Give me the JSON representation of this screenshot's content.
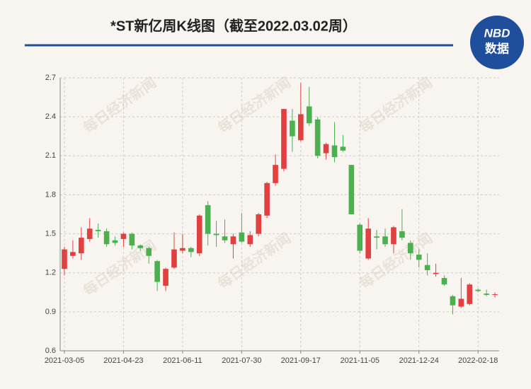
{
  "chart_data": {
    "type": "candlestick",
    "title": "*ST新亿周K线图（截至2022.03.02周）",
    "logo": {
      "top": "NBD",
      "bottom": "数据"
    },
    "watermark": "每日经济新闻",
    "categories": [
      "2021-03-05",
      null,
      null,
      null,
      null,
      null,
      null,
      "2021-04-23",
      null,
      null,
      null,
      null,
      null,
      null,
      "2021-06-11",
      null,
      null,
      null,
      null,
      null,
      null,
      "2021-07-30",
      null,
      null,
      null,
      null,
      null,
      null,
      "2021-09-17",
      null,
      null,
      null,
      null,
      null,
      null,
      "2021-11-05",
      null,
      null,
      null,
      null,
      null,
      null,
      "2021-12-24",
      null,
      null,
      null,
      null,
      null,
      null,
      "2022-02-18",
      null,
      null
    ],
    "open": [
      1.23,
      1.33,
      1.35,
      1.46,
      1.53,
      1.52,
      1.45,
      1.46,
      1.5,
      1.41,
      1.39,
      1.29,
      1.1,
      1.24,
      1.37,
      1.39,
      1.35,
      1.72,
      1.5,
      1.48,
      1.42,
      1.51,
      1.42,
      1.5,
      1.64,
      1.89,
      2.0,
      2.37,
      2.22,
      2.48,
      2.38,
      2.12,
      2.18,
      2.17,
      2.03,
      1.57,
      1.31,
      1.48,
      1.48,
      1.42,
      1.52,
      1.43,
      1.34,
      1.26,
      1.19,
      1.16,
      1.02,
      0.94,
      0.96,
      1.07,
      1.04,
      1.03
    ],
    "high": [
      1.4,
      1.45,
      1.55,
      1.62,
      1.58,
      1.54,
      1.48,
      1.51,
      1.51,
      1.42,
      1.4,
      1.3,
      1.24,
      1.51,
      1.5,
      1.4,
      1.65,
      1.75,
      1.6,
      1.61,
      1.5,
      1.66,
      1.52,
      1.66,
      1.9,
      2.11,
      2.46,
      2.46,
      2.66,
      2.63,
      2.4,
      2.2,
      2.36,
      2.26,
      2.03,
      1.58,
      1.62,
      1.53,
      1.54,
      1.56,
      1.69,
      1.45,
      1.38,
      1.35,
      1.27,
      1.18,
      1.03,
      1.16,
      1.12,
      1.08,
      1.07,
      1.05
    ],
    "low": [
      1.18,
      1.31,
      1.3,
      1.44,
      1.47,
      1.4,
      1.41,
      1.4,
      1.38,
      1.37,
      1.27,
      1.06,
      1.06,
      1.23,
      1.35,
      1.32,
      1.33,
      1.41,
      1.4,
      1.43,
      1.31,
      1.43,
      1.4,
      1.48,
      1.62,
      1.87,
      1.98,
      2.13,
      2.21,
      2.33,
      2.08,
      2.07,
      2.05,
      2.13,
      1.65,
      1.35,
      1.3,
      1.38,
      1.4,
      1.35,
      1.45,
      1.3,
      1.24,
      1.18,
      1.17,
      1.1,
      0.88,
      0.93,
      0.95,
      1.05,
      1.02,
      1.01
    ],
    "close": [
      1.38,
      1.36,
      1.47,
      1.54,
      1.52,
      1.42,
      1.43,
      1.5,
      1.41,
      1.39,
      1.33,
      1.13,
      1.23,
      1.38,
      1.39,
      1.36,
      1.64,
      1.5,
      1.49,
      1.45,
      1.48,
      1.44,
      1.49,
      1.65,
      1.89,
      2.03,
      2.46,
      2.25,
      2.42,
      2.35,
      2.1,
      2.19,
      2.09,
      2.14,
      1.65,
      1.37,
      1.54,
      1.47,
      1.42,
      1.55,
      1.47,
      1.35,
      1.3,
      1.22,
      1.2,
      1.11,
      0.95,
      1.0,
      1.11,
      1.06,
      1.03,
      1.035
    ],
    "up_color": "#e04040",
    "down_color": "#4caf50",
    "ylim": [
      0.6,
      2.7
    ],
    "yticks": [
      0.6,
      0.9,
      1.2,
      1.5,
      1.8,
      2.1,
      2.4,
      2.7
    ],
    "grid": true
  }
}
